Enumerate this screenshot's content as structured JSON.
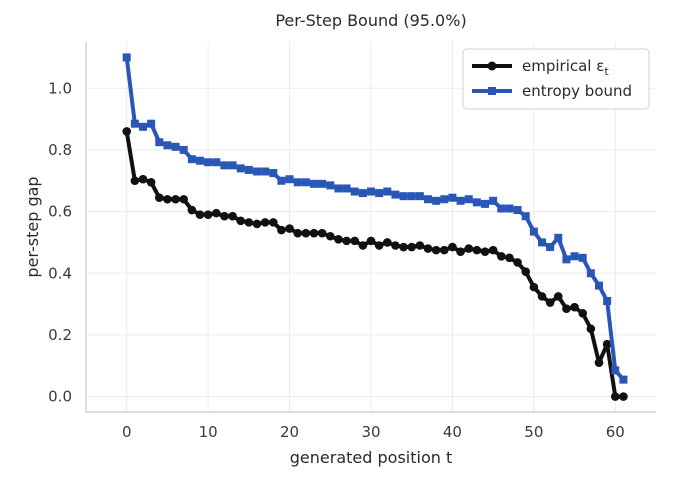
{
  "chart_data": {
    "type": "line",
    "title": "Per-Step Bound (95.0%)",
    "xlabel": "generated position t",
    "ylabel": "per-step gap",
    "xlim": [
      -5,
      65
    ],
    "ylim": [
      -0.05,
      1.15
    ],
    "xticks": [
      "0",
      "10",
      "20",
      "30",
      "40",
      "50",
      "60"
    ],
    "yticks": [
      "0.0",
      "0.2",
      "0.4",
      "0.6",
      "0.8",
      "1.0"
    ],
    "grid": true,
    "legend_position": "top-right",
    "series": [
      {
        "name": "empirical ε",
        "name_subscript": "t",
        "color": "#111111",
        "marker": "circle",
        "x": [
          0,
          1,
          2,
          3,
          4,
          5,
          6,
          7,
          8,
          9,
          10,
          11,
          12,
          13,
          14,
          15,
          16,
          17,
          18,
          19,
          20,
          21,
          22,
          23,
          24,
          25,
          26,
          27,
          28,
          29,
          30,
          31,
          32,
          33,
          34,
          35,
          36,
          37,
          38,
          39,
          40,
          41,
          42,
          43,
          44,
          45,
          46,
          47,
          48,
          49,
          50,
          51,
          52,
          53,
          54,
          55,
          56,
          57,
          58,
          59,
          60,
          61
        ],
        "values": [
          0.86,
          0.7,
          0.705,
          0.695,
          0.645,
          0.64,
          0.64,
          0.64,
          0.605,
          0.59,
          0.59,
          0.595,
          0.585,
          0.585,
          0.57,
          0.565,
          0.56,
          0.565,
          0.565,
          0.54,
          0.545,
          0.53,
          0.53,
          0.53,
          0.53,
          0.52,
          0.51,
          0.505,
          0.505,
          0.49,
          0.505,
          0.49,
          0.5,
          0.49,
          0.485,
          0.485,
          0.49,
          0.48,
          0.475,
          0.475,
          0.485,
          0.47,
          0.48,
          0.475,
          0.47,
          0.475,
          0.455,
          0.45,
          0.435,
          0.405,
          0.355,
          0.325,
          0.305,
          0.325,
          0.285,
          0.29,
          0.27,
          0.22,
          0.11,
          0.17,
          0.0,
          0.0
        ]
      },
      {
        "name": "entropy bound",
        "color": "#2a56b8",
        "marker": "square",
        "x": [
          0,
          1,
          2,
          3,
          4,
          5,
          6,
          7,
          8,
          9,
          10,
          11,
          12,
          13,
          14,
          15,
          16,
          17,
          18,
          19,
          20,
          21,
          22,
          23,
          24,
          25,
          26,
          27,
          28,
          29,
          30,
          31,
          32,
          33,
          34,
          35,
          36,
          37,
          38,
          39,
          40,
          41,
          42,
          43,
          44,
          45,
          46,
          47,
          48,
          49,
          50,
          51,
          52,
          53,
          54,
          55,
          56,
          57,
          58,
          59,
          60,
          61
        ],
        "values": [
          1.1,
          0.885,
          0.875,
          0.885,
          0.825,
          0.815,
          0.81,
          0.8,
          0.77,
          0.765,
          0.76,
          0.76,
          0.75,
          0.75,
          0.74,
          0.735,
          0.73,
          0.73,
          0.725,
          0.7,
          0.705,
          0.695,
          0.695,
          0.69,
          0.69,
          0.685,
          0.675,
          0.675,
          0.665,
          0.66,
          0.665,
          0.66,
          0.665,
          0.655,
          0.65,
          0.65,
          0.65,
          0.64,
          0.635,
          0.64,
          0.645,
          0.635,
          0.64,
          0.63,
          0.625,
          0.635,
          0.61,
          0.61,
          0.605,
          0.585,
          0.535,
          0.5,
          0.485,
          0.515,
          0.445,
          0.455,
          0.45,
          0.4,
          0.36,
          0.31,
          0.085,
          0.055
        ]
      }
    ]
  }
}
